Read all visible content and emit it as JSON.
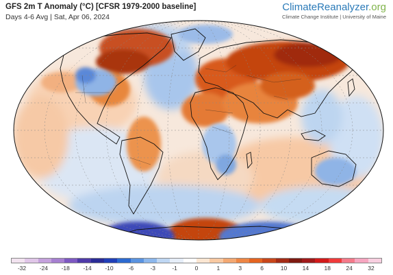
{
  "header": {
    "title": "GFS 2m T Anomaly (°C) [CFSR 1979-2000 baseline]",
    "subtitle": "Days 4-6 Avg | Sat, Apr 06, 2024"
  },
  "brand": {
    "name_main": "ClimateReanalyzer",
    "name_suffix": ".org",
    "subtitle": "Climate Change Institute | University of Maine"
  },
  "legend": {
    "ticks": [
      "-32",
      "-24",
      "-18",
      "-14",
      "-10",
      "-6",
      "-3",
      "-1",
      "0",
      "1",
      "3",
      "6",
      "10",
      "14",
      "18",
      "24",
      "32"
    ],
    "colors": [
      "#f2e3f0",
      "#e0c6e8",
      "#c4a1dc",
      "#a67fd0",
      "#7d58c2",
      "#4e3aa8",
      "#2a2c96",
      "#203fb8",
      "#2c6ad0",
      "#5a93e0",
      "#8cb7ec",
      "#bfd7f3",
      "#e6eef8",
      "#ffffff",
      "#fbe6d2",
      "#f8c9a2",
      "#f3a872",
      "#ee8644",
      "#e46420",
      "#c8461a",
      "#a42b15",
      "#7e1a10",
      "#a01a1a",
      "#d21a1a",
      "#f03a3a",
      "#f47a8a",
      "#f6a6c0",
      "#f8cfe0"
    ]
  },
  "colors": {
    "warm": "#e8772e",
    "warm_strong": "#b8330f",
    "cool": "#5b8fdc",
    "cool_strong": "#2a2ea0"
  }
}
